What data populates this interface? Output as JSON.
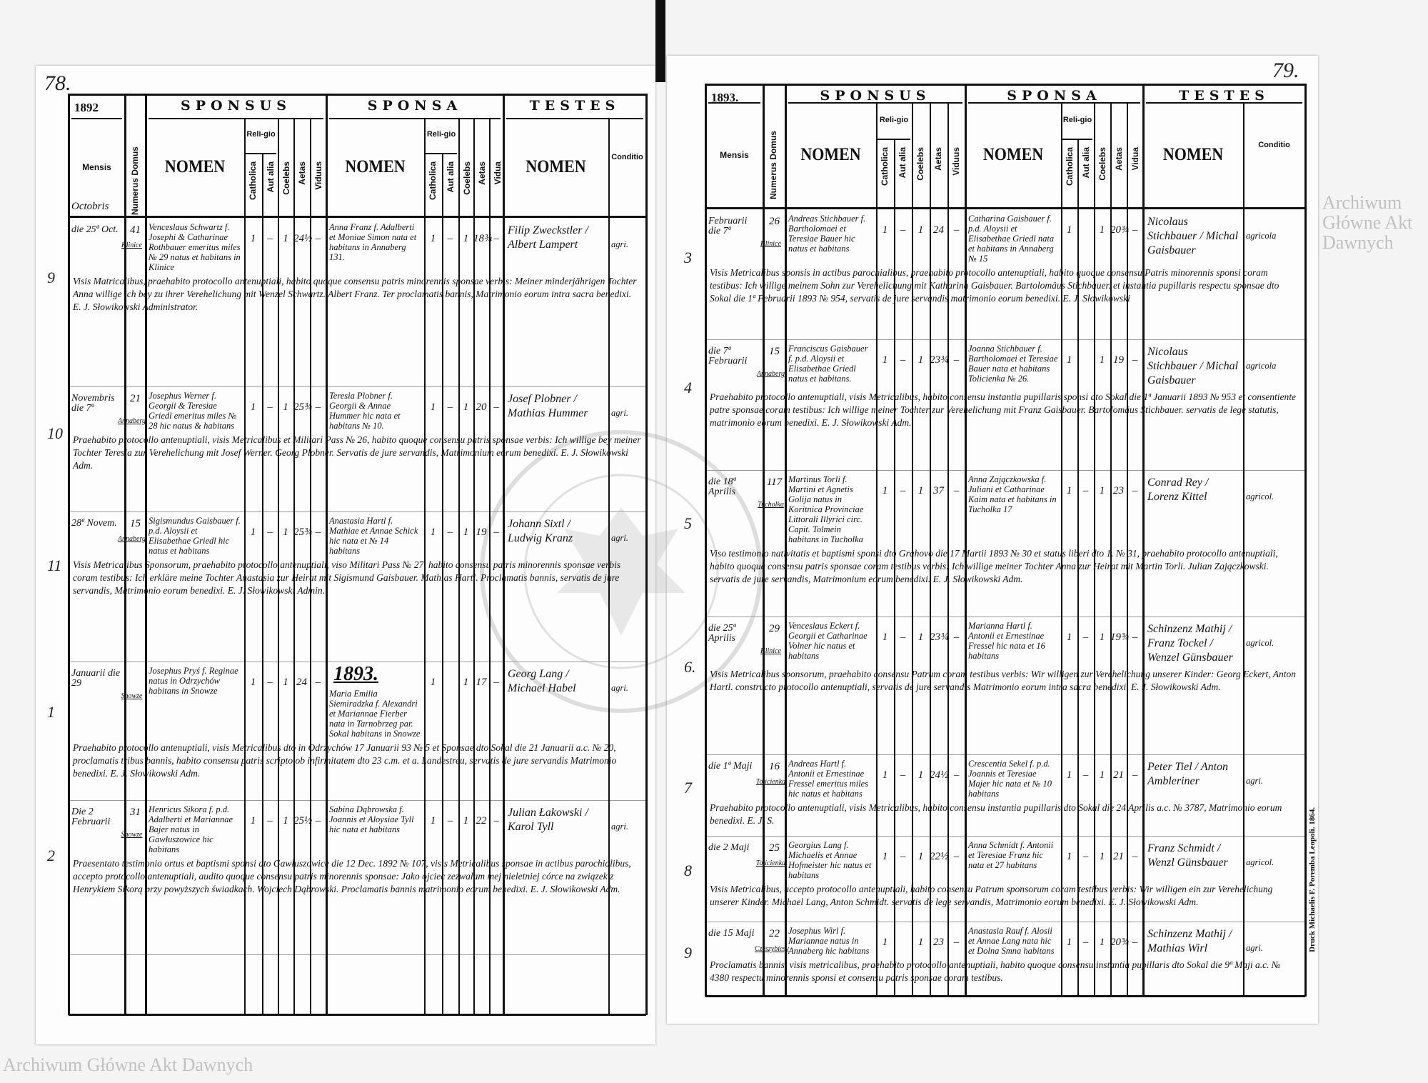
{
  "watermark_text": "Archiwum Główne Akt Dawnych",
  "watermark_seal": "ARCHIWUM GŁÓWNE AKT DAWNYCH",
  "printer_note": "Druck Michaelis F. Poremba Leopoli. 1864.",
  "header": {
    "sponsus": "SPONSUS",
    "sponsa": "SPONSA",
    "testes": "TESTES",
    "mensis": "Mensis",
    "numerus_domus": "Numerus Domus",
    "nomen": "NOMEN",
    "religio": "Reli-gio",
    "catholica": "Catholica",
    "aut_alia": "Aut alia",
    "coelebs": "Coelebs",
    "aetas": "Aetas",
    "viduus": "Viduus",
    "vidua": "Vidua",
    "conditio": "Conditio"
  },
  "pages": [
    {
      "page_number": "78.",
      "year": "1892",
      "header_month": "Octobris",
      "year_mark": "1893.",
      "rows": [
        {
          "margin": "9",
          "mensis": "die 25ª Oct.",
          "numerus": "41",
          "domus": "Klinice",
          "sponsus": "Venceslaus Schwartz f. Josephi & Catharinae Rothbauer emeritus miles № 29 natus et habitans in Klinice",
          "s_cath": "1",
          "s_aut": "–",
          "s_coel": "1",
          "s_aetas": "24½",
          "s_vid": "–",
          "sponsa": "Anna Franz f. Adalberti et Moniae Simon nata et habitans in Annaberg 131.",
          "a_cath": "1",
          "a_aut": "–",
          "a_coel": "1",
          "a_aetas": "18¾",
          "a_vid": "–",
          "testes": "Filip Zweckstler / Albert Lampert",
          "conditio": "agri.",
          "remark": "Visis Matricalibus, praehabito protocollo antenuptiali, habito quoque consensu patris minorennis sponsae verbis: Meiner minderjährigen Tochter Anna willige ich bey zu ihrer Verehelichung mit Wenzel Schwartz. Albert Franz. Ter proclamatis bannis, Matrimonio eorum intra sacra benedixi. E. J. Słowikowski Administrator."
        },
        {
          "margin": "10",
          "mensis": "Novembris die 7ª",
          "numerus": "21",
          "domus": "Annaberg",
          "sponsus": "Josephus Werner f. Georgii & Teresiae Griedl emeritus miles № 28 hic natus & habitans",
          "s_cath": "1",
          "s_aut": "–",
          "s_coel": "1",
          "s_aetas": "25¾",
          "s_vid": "–",
          "sponsa": "Teresia Plobner f. Georgii & Annae Hummer hic nata et habitans № 10.",
          "a_cath": "1",
          "a_aut": "–",
          "a_coel": "1",
          "a_aetas": "20",
          "a_vid": "–",
          "testes": "Josef Plobner / Mathias Hummer",
          "conditio": "agri.",
          "remark": "Praehabito protocollo antenuptiali, visis Metricalibus et Militari Pass № 26, habito quoque consensu patris sponsae verbis: Ich willige bey meiner Tochter Teresia zur Verehelichung mit Josef Werner. Georg Plobner. Servatis de jure servandis, Matrimonium eorum benedixi. E. J. Słowikowski Adm."
        },
        {
          "margin": "11",
          "mensis": "28ª Novem.",
          "numerus": "15",
          "domus": "Annaberg",
          "sponsus": "Sigismundus Gaisbauer f. p.d. Aloysii et Elisabethae Griedl hic natus et habitans",
          "s_cath": "1",
          "s_aut": "–",
          "s_coel": "1",
          "s_aetas": "25¾",
          "s_vid": "–",
          "sponsa": "Anastasia Hartl f. Mathiae et Annae Schick hic nata et № 14 habitans",
          "a_cath": "1",
          "a_aut": "–",
          "a_coel": "1",
          "a_aetas": "19",
          "a_vid": "–",
          "testes": "Johann Sixtl / Ludwig Kranz",
          "conditio": "agri.",
          "remark": "Visis Metricalibus Sponsorum, praehabito protocollo antenuptiali, viso Militari Pass № 27, habito consensu patris minorennis sponsae verbis coram testibus: Ich erkläre meine Tochter Anastasia zur Heirat mit Sigismund Gaisbauer. Mathias Hartl. Proclamatis bannis, servatis de jure servandis, Matrimonio eorum benedixi. E. J. Słowikowski Admin."
        },
        {
          "margin": "1",
          "mensis": "Januarii die 29",
          "numerus": "",
          "domus": "Snowze",
          "sponsus": "Josephus Pryś f. Reginae natus in Odrzychów habitans in Snowze",
          "s_cath": "1",
          "s_aut": "–",
          "s_coel": "1",
          "s_aetas": "24",
          "s_vid": "–",
          "sponsa": "Maria Emilia Siemiradzka f. Alexandri et Mariannae Fierber nata in Tarnobrzeg par. Sokal habitans in Snowze",
          "a_cath": "1",
          "a_aut": "",
          "a_coel": "1",
          "a_aetas": "17",
          "a_vid": "–",
          "testes": "Georg Lang / Michael Habel",
          "conditio": "agri.",
          "remark": "Praehabito protocollo antenuptiali, visis Metricalibus dto in Odrzychów 17 Januarii 93 № 5 et Sponsae dto Sokal die 21 Januarii a.c. № 20, proclamatis tribus bannis, habito consensu patris scripto ob infirmitatem dto 23 c.m. et a. Landestreu, servatis de jure servandis Matrimonio benedixi. E. J. Słowikowski Adm."
        },
        {
          "margin": "2",
          "mensis": "Die 2 Februarii",
          "numerus": "31",
          "domus": "Snowze",
          "sponsus": "Henricus Sikora f. p.d. Adalberti et Mariannae Bajer natus in Gawłuszowice hic habitans",
          "s_cath": "1",
          "s_aut": "–",
          "s_coel": "1",
          "s_aetas": "25½",
          "s_vid": "–",
          "sponsa": "Sabina Dąbrowska f. Joannis et Aloysiae Tyll hic nata et habitans",
          "a_cath": "1",
          "a_aut": "–",
          "a_coel": "1",
          "a_aetas": "22",
          "a_vid": "–",
          "testes": "Julian Łakowski / Karol Tyll",
          "conditio": "agri.",
          "remark": "Praesentato testimonio ortus et baptismi sponsi dto Gawłuszowice die 12 Dec. 1892 № 107, visis Metricalibus sponsae in actibus parochialibus, accepto protocollo antenuptiali, audito quoque consensu patris minorennis sponsae: Jako ojciec zezwalam mej nieletniej córce na związek z Henrykiem Sikorą przy powyższych świadkach. Wojciech Dąbrowski. Proclamatis bannis matrimonio eorum benedixi. E. J. Słowikowski Adm."
        }
      ]
    },
    {
      "page_number": "79.",
      "year": "1893.",
      "header_month": "",
      "rows": [
        {
          "margin": "3",
          "mensis": "Februarii die 7ª",
          "numerus": "26",
          "domus": "Klinice",
          "sponsus": "Andreas Stichbauer f. Bartholomaei et Teresiae Bauer hic natus et habitans",
          "s_cath": "1",
          "s_aut": "–",
          "s_coel": "1",
          "s_aetas": "24",
          "s_vid": "–",
          "sponsa": "Catharina Gaisbauer f. p.d. Aloysii et Elisabethae Griedl nata et habitans in Annaberg № 15",
          "a_cath": "1",
          "a_aut": "",
          "a_coel": "1",
          "a_aetas": "20¾",
          "a_vid": "–",
          "testes": "Nicolaus Stichbauer / Michal Gaisbauer",
          "conditio": "agricola",
          "remark": "Visis Metricalibus sponsis in actibus parochialibus, praehabito protocollo antenuptiali, habito quoque consensu Patris minorennis sponsi coram testibus: Ich willige meinem Sohn zur Verehelichung mit Katharina Gaisbauer. Bartolomäus Stichbauer. et instantia pupillaris respectu sponsae dto Sokal die 1ª Februarii 1893 № 954, servatis de jure servandis matrimonio eorum benedixi. E. J. Słowikowski"
        },
        {
          "margin": "4",
          "mensis": "die 7ª Februarii",
          "numerus": "15",
          "domus": "Annaberg",
          "sponsus": "Franciscus Gaisbauer f. p.d. Aloysii et Elisabethae Griedl natus et habitans.",
          "s_cath": "1",
          "s_aut": "–",
          "s_coel": "1",
          "s_aetas": "23¾",
          "s_vid": "–",
          "sponsa": "Joanna Stichbauer f. Bartholomaei et Teresiae Bauer nata et habitans Tolicienka № 26.",
          "a_cath": "1",
          "a_aut": "",
          "a_coel": "1",
          "a_aetas": "19",
          "a_vid": "–",
          "testes": "Nicolaus Stichbauer / Michal Gaisbauer",
          "conditio": "agricola",
          "remark": "Praehabito protocollo antenuptiali, visis Metricalibus, habito consensu instantia pupillaris sponsi dto Sokal die 1ª Januarii 1893 № 953 et consentiente patre sponsae coram testibus: Ich willige meiner Tochter zur Verehelichung mit Franz Gaisbauer. Bartolomäus Stichbauer. servatis de lege statutis, matrimonio eorum benedixi. E. J. Słowikowski Adm."
        },
        {
          "margin": "5",
          "mensis": "die 18ª Aprilis",
          "numerus": "117",
          "domus": "Tucholka",
          "sponsus": "Martinus Torli f. Martini et Agnetis Golija natus in Koritnica Provinciae Littorali Illyrici circ. Capit. Tolmein habitans in Tucholka",
          "s_cath": "1",
          "s_aut": "–",
          "s_coel": "1",
          "s_aetas": "37",
          "s_vid": "–",
          "sponsa": "Anna Zajączkowska f. Juliani et Catharinae Kaim nata et habitans in Tucholka 17",
          "a_cath": "1",
          "a_aut": "–",
          "a_coel": "1",
          "a_aetas": "23",
          "a_vid": "–",
          "testes": "Conrad Rey / Lorenz Kittel",
          "conditio": "agricol.",
          "remark": "Viso testimonio nativitatis et baptismi sponsi dto Grahovo die 17 Martii 1893 № 30 et status liberi dto 1. № 31, praehabito protocollo antenuptiali, habito quoque consensu patris sponsae coram testibus verbis: Ich willige meiner Tochter Anna zur Heirat mit Martin Torli. Julian Zajączkowski. servatis de jure servandis, Matrimonium eorum benedixi. E. J. Słowikowski Adm."
        },
        {
          "margin": "6.",
          "mensis": "die 25ª Aprilis",
          "numerus": "29",
          "domus": "Klinice",
          "sponsus": "Venceslaus Eckert f. Georgii et Catharinae Volner hic natus et habitans",
          "s_cath": "1",
          "s_aut": "–",
          "s_coel": "1",
          "s_aetas": "23¾",
          "s_vid": "–",
          "sponsa": "Marianna Hartl f. Antonii et Ernestinae Fressel hic nata et 16 habitans",
          "a_cath": "1",
          "a_aut": "–",
          "a_coel": "1",
          "a_aetas": "19¾",
          "a_vid": "–",
          "testes": "Schinzenz Mathij / Franz Tockel / Wenzel Günsbauer",
          "conditio": "agricol.",
          "remark": "Visis Metricalibus sponsorum, praehabito consensu Patrum coram testibus verbis: Wir willigen zur Verehelichung unserer Kinder: Georg Eckert, Anton Hartl. constructo protocollo antenuptiali, servatis de jure servandis Matrimonio eorum intra sacra benedixi. E. J. Słowikowski Adm."
        },
        {
          "margin": "7",
          "mensis": "die 1ª Maji",
          "numerus": "16",
          "domus": "Tolicienka",
          "sponsus": "Andreas Hartl f. Antonii et Ernestinae Fressel emeritus miles hic natus et habitans",
          "s_cath": "1",
          "s_aut": "–",
          "s_coel": "1",
          "s_aetas": "24½",
          "s_vid": "–",
          "sponsa": "Crescentia Sekel f. p.d. Joannis et Teresiae Majer hic nata et № 10 habitans",
          "a_cath": "1",
          "a_aut": "–",
          "a_coel": "1",
          "a_aetas": "21",
          "a_vid": "–",
          "testes": "Peter Tiel / Anton Ambleriner",
          "conditio": "agri.",
          "remark": "Praehabito protocollo antenuptiali, visis Metricalibus, habito consensu instantia pupillaris dto Sokal die 24 Aprilis a.c. № 3787, Matrimonio eorum benedixi. E. J. S."
        },
        {
          "margin": "8",
          "mensis": "die 2 Maji",
          "numerus": "25",
          "domus": "Tolicienka",
          "sponsus": "Georgius Lang f. Michaelis et Annae Hofmeister hic natus et habitans",
          "s_cath": "1",
          "s_aut": "–",
          "s_coel": "1",
          "s_aetas": "22½",
          "s_vid": "–",
          "sponsa": "Anna Schmidt f. Antonii et Teresiae Franz hic nata et 27 habitans",
          "a_cath": "1",
          "a_aut": "–",
          "a_coel": "1",
          "a_aetas": "21",
          "a_vid": "–",
          "testes": "Franz Schmidt / Wenzl Günsbauer",
          "conditio": "agricol.",
          "remark": "Visis Metricalibus, accepto protocollo antenuptiali, habito consensu Patrum sponsorum coram testibus verbis: Wir willigen ein zur Verehelichung unserer Kinder. Michael Lang, Anton Schmidt. servatis de lege servandis, Matrimonio eorum benedixi. E. J. Słowikowski Adm."
        },
        {
          "margin": "9",
          "mensis": "die 15 Maji",
          "numerus": "22",
          "domus": "Czeszybiesy",
          "sponsus": "Josephus Wirl f. Mariannae natus in Annaberg hic habitans",
          "s_cath": "1",
          "s_aut": "",
          "s_coel": "1",
          "s_aetas": "23",
          "s_vid": "–",
          "sponsa": "Anastasia Rauf f. Alosii et Annae Lang nata hic et Dolna Smna habitans",
          "a_cath": "1",
          "a_aut": "–",
          "a_coel": "1",
          "a_aetas": "20¾",
          "a_vid": "–",
          "testes": "Schinzenz Mathij / Mathias Wirl",
          "conditio": "agri.",
          "remark": "Proclamatis bannis, visis metricalibus, praehabito protocollo antenuptiali, habito quoque consensu instantia pupillaris dto Sokal die 9ª Maji a.c. № 4380 respectu minorennis sponsi et consensu patris sponsae coram testibus."
        }
      ]
    }
  ]
}
